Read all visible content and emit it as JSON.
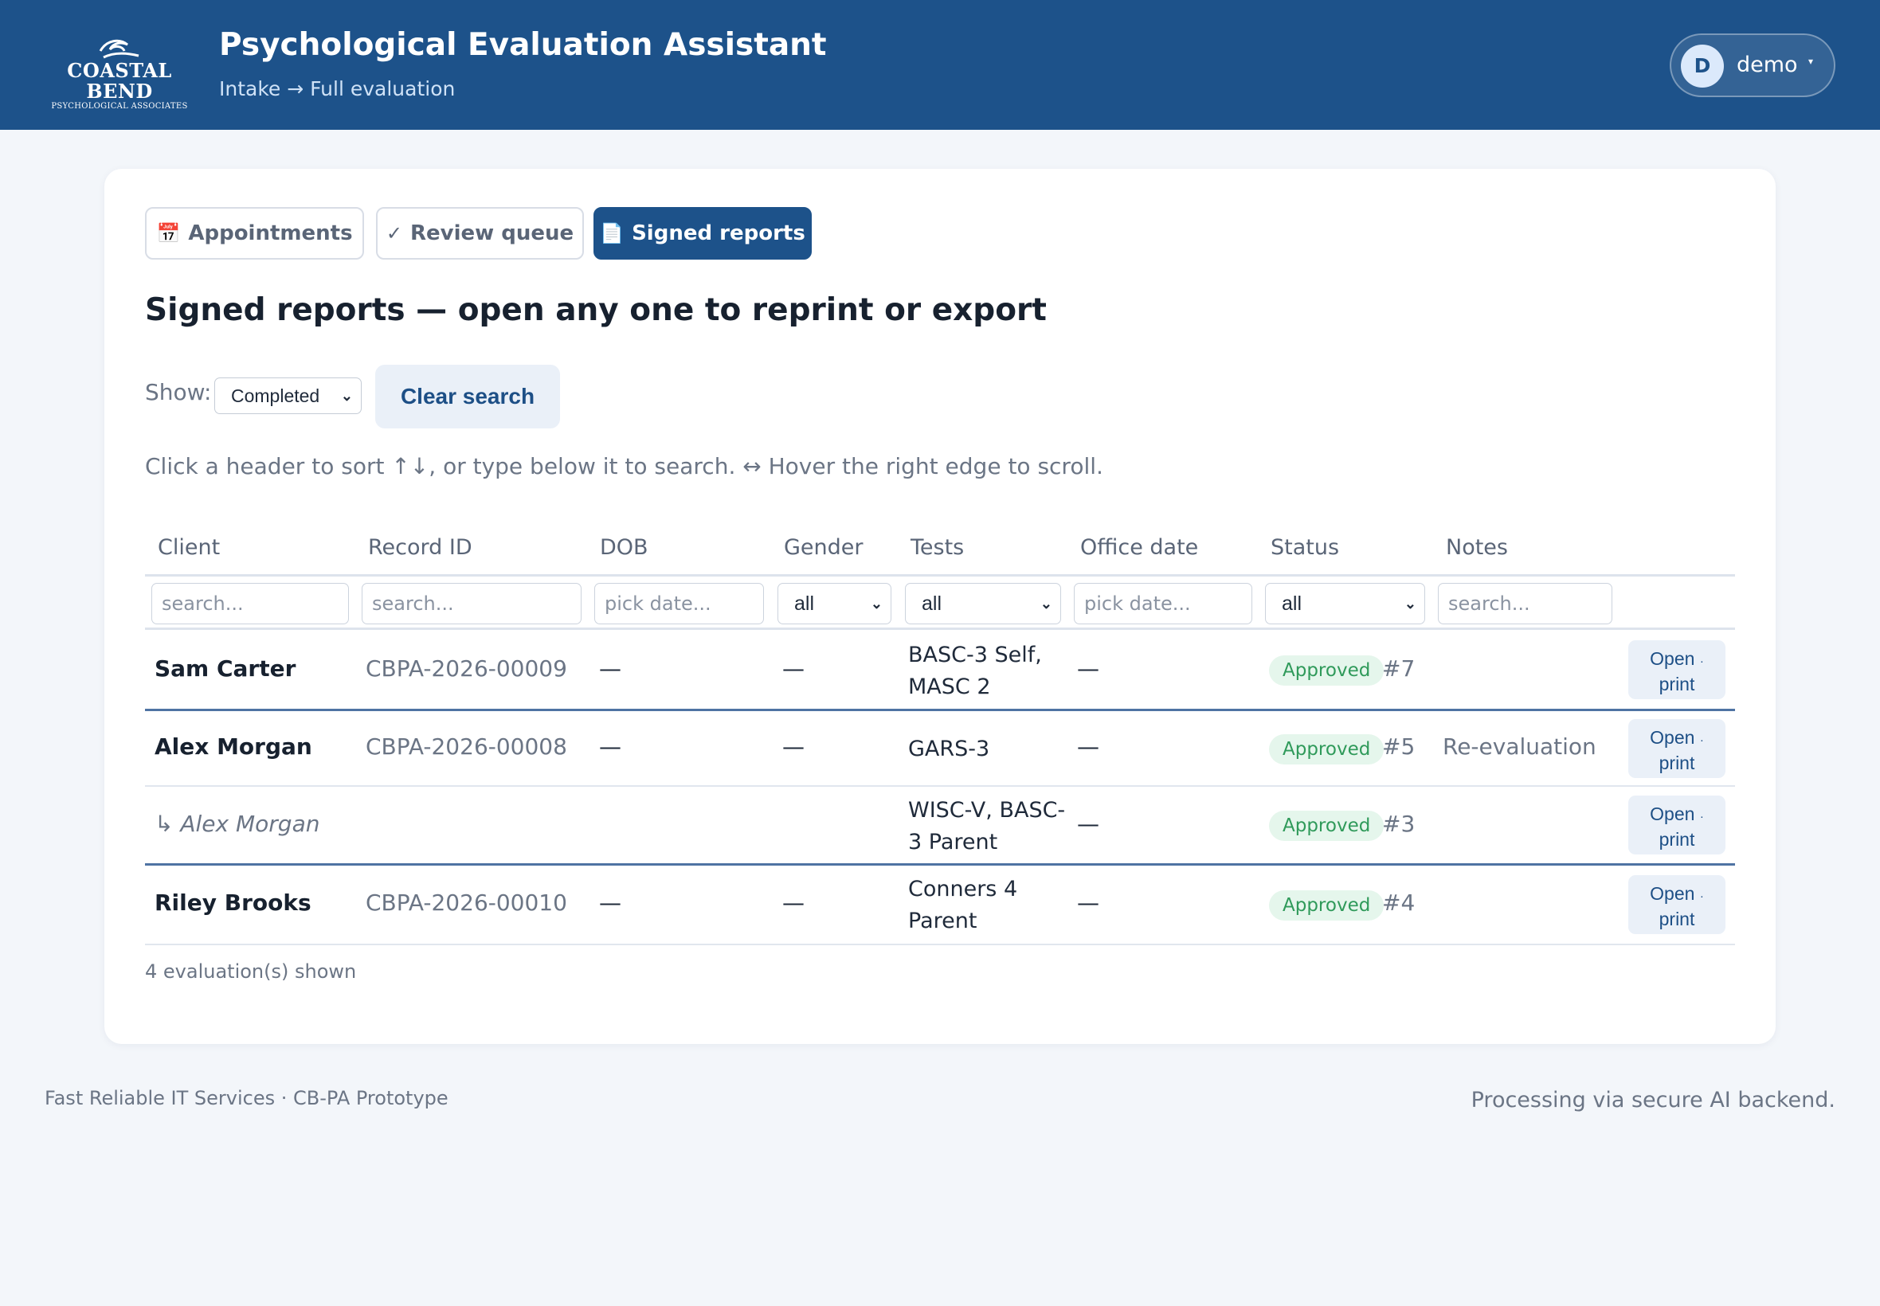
{
  "header": {
    "logo_line1": "COASTAL BEND",
    "logo_line2": "PSYCHOLOGICAL ASSOCIATES",
    "title": "Psychological Evaluation Assistant",
    "breadcrumb": "Intake → Full evaluation",
    "user": {
      "initial": "D",
      "name": "demo",
      "caret": "▾"
    }
  },
  "tabs": [
    {
      "icon": "📅",
      "label": "Appointments"
    },
    {
      "icon": "✓",
      "label": "Review queue"
    },
    {
      "icon": "📄",
      "label": "Signed reports"
    }
  ],
  "page_title": "Signed reports — open any one to reprint or export",
  "controls": {
    "show_label": "Show:",
    "show_value": "Completed",
    "clear_label": "Clear search",
    "hint": "Click a header to sort ↑↓, or type below it to search. ↔ Hover the right edge to scroll."
  },
  "table": {
    "columns": [
      "Client",
      "Record ID",
      "DOB",
      "Gender",
      "Tests",
      "Office date",
      "Status",
      "Notes"
    ],
    "filters": {
      "client": "search...",
      "record_id": "search...",
      "dob": "pick date...",
      "gender": "all",
      "tests": "all",
      "office_date": "pick date...",
      "status": "all",
      "notes": "search..."
    },
    "rows": [
      {
        "client": "Sam Carter",
        "record_id": "CBPA-2026-00009",
        "dob": "—",
        "gender": "—",
        "tests": "BASC-3 Self, MASC 2",
        "office_date": "—",
        "status": "Approved",
        "num": "#7",
        "notes": "",
        "action": "Open",
        "action2": "print"
      },
      {
        "client": "Alex Morgan",
        "record_id": "CBPA-2026-00008",
        "dob": "—",
        "gender": "—",
        "tests": "GARS-3",
        "office_date": "—",
        "status": "Approved",
        "num": "#5",
        "notes": "Re-evaluation",
        "action": "Open",
        "action2": "print"
      },
      {
        "client": "↳ Alex Morgan",
        "record_id": "",
        "dob": "",
        "gender": "",
        "tests": "WISC-V, BASC-3 Parent",
        "office_date": "—",
        "status": "Approved",
        "num": "#3",
        "notes": "",
        "action": "Open",
        "action2": "print"
      },
      {
        "client": "Riley Brooks",
        "record_id": "CBPA-2026-00010",
        "dob": "—",
        "gender": "—",
        "tests": "Conners 4 Parent",
        "office_date": "—",
        "status": "Approved",
        "num": "#4",
        "notes": "",
        "action": "Open",
        "action2": "print"
      }
    ],
    "count_text": "4 evaluation(s) shown"
  },
  "footer": {
    "left": "Fast Reliable IT Services · CB-PA Prototype",
    "right": "Processing via secure AI backend."
  },
  "colors": {
    "brand": "#1d528a",
    "approved_bg": "#e5f6ec",
    "approved_text": "#2f9a5a"
  }
}
